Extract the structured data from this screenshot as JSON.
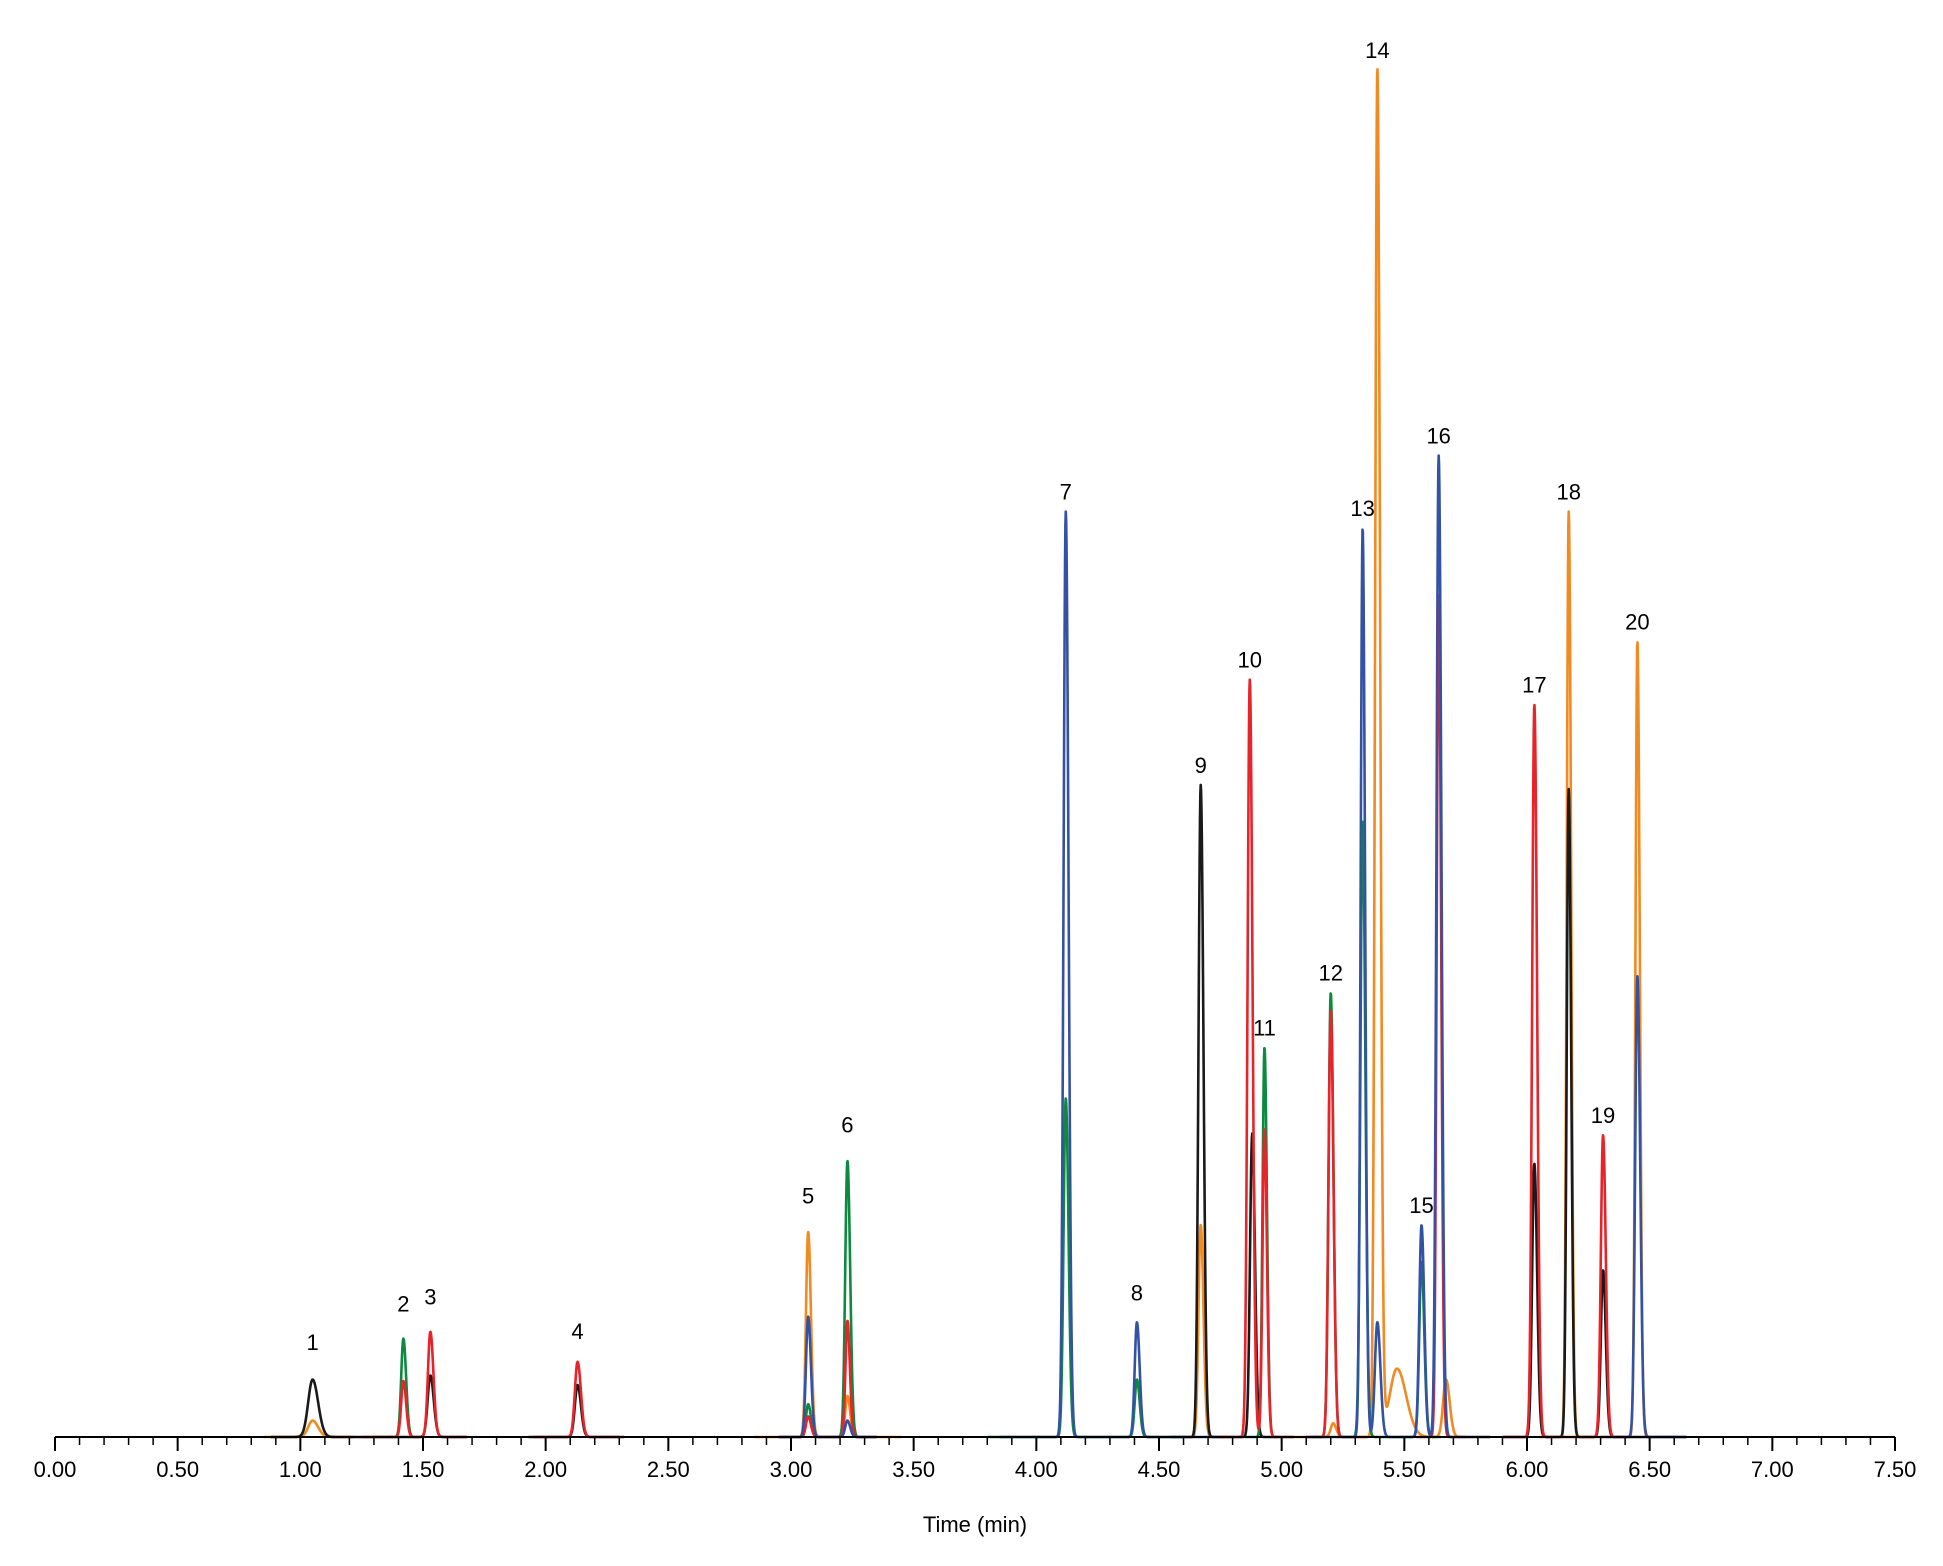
{
  "chart_data": {
    "type": "line",
    "title": "",
    "xlabel": "Time (min)",
    "ylabel": "",
    "xlim": [
      0,
      7.5
    ],
    "ylim": [
      0,
      1000
    ],
    "grid": false,
    "x_ticks": [
      "0.00",
      "0.50",
      "1.00",
      "1.50",
      "2.00",
      "2.50",
      "3.00",
      "3.50",
      "4.00",
      "4.50",
      "5.00",
      "5.50",
      "6.00",
      "6.50",
      "7.00",
      "7.50"
    ],
    "x_minor_step": 0.1,
    "colors": {
      "black": "#1a1a1a",
      "orange": "#f18a21",
      "green": "#0d8a3f",
      "red": "#e8232a",
      "blue": "#3452a4"
    },
    "peak_labels": [
      {
        "label": "1",
        "x": 1.05,
        "y": 55
      },
      {
        "label": "2",
        "x": 1.42,
        "y": 83
      },
      {
        "label": "3",
        "x": 1.53,
        "y": 88
      },
      {
        "label": "4",
        "x": 2.13,
        "y": 63
      },
      {
        "label": "5",
        "x": 3.07,
        "y": 162
      },
      {
        "label": "6",
        "x": 3.23,
        "y": 214
      },
      {
        "label": "7",
        "x": 4.12,
        "y": 677
      },
      {
        "label": "8",
        "x": 4.41,
        "y": 91
      },
      {
        "label": "9",
        "x": 4.67,
        "y": 477
      },
      {
        "label": "10",
        "x": 4.87,
        "y": 554
      },
      {
        "label": "11",
        "x": 4.93,
        "y": 285
      },
      {
        "label": "12",
        "x": 5.2,
        "y": 325
      },
      {
        "label": "13",
        "x": 5.33,
        "y": 665
      },
      {
        "label": "14",
        "x": 5.39,
        "y": 1000
      },
      {
        "label": "15",
        "x": 5.57,
        "y": 155
      },
      {
        "label": "16",
        "x": 5.64,
        "y": 718
      },
      {
        "label": "17",
        "x": 6.03,
        "y": 536
      },
      {
        "label": "18",
        "x": 6.17,
        "y": 677
      },
      {
        "label": "19",
        "x": 6.31,
        "y": 221
      },
      {
        "label": "20",
        "x": 6.45,
        "y": 582
      }
    ],
    "series": [
      {
        "color": "black",
        "segments": [
          [
            0.88,
            1.68,
            [
              [
                1.05,
                42,
                0.018
              ],
              [
                1.53,
                45,
                0.011
              ]
            ]
          ],
          [
            1.93,
            2.32,
            [
              [
                2.13,
                38,
                0.011
              ]
            ]
          ],
          [
            4.55,
            4.98,
            [
              [
                4.67,
                477,
                0.009
              ],
              [
                4.88,
                222,
                0.009
              ]
            ]
          ],
          [
            5.9,
            6.65,
            [
              [
                6.03,
                200,
                0.009
              ],
              [
                6.17,
                474,
                0.008
              ],
              [
                6.31,
                122,
                0.009
              ]
            ]
          ]
        ]
      },
      {
        "color": "orange",
        "segments": [
          [
            0.85,
            1.22,
            [
              [
                1.05,
                12,
                0.018
              ]
            ]
          ],
          [
            2.85,
            3.45,
            [
              [
                3.07,
                150,
                0.009
              ],
              [
                3.23,
                30,
                0.009
              ]
            ]
          ],
          [
            4.55,
            4.78,
            [
              [
                4.67,
                155,
                0.009
              ]
            ]
          ],
          [
            5.05,
            5.85,
            [
              [
                5.21,
                10,
                0.01
              ],
              [
                5.39,
                1000,
                0.009
              ],
              [
                5.47,
                50,
                0.03
              ],
              [
                5.67,
                42,
                0.012
              ]
            ]
          ],
          [
            6.05,
            6.5,
            [
              [
                6.17,
                677,
                0.008
              ],
              [
                6.45,
                582,
                0.008
              ]
            ]
          ]
        ]
      },
      {
        "color": "green",
        "segments": [
          [
            1.3,
            1.48,
            [
              [
                1.42,
                72,
                0.009
              ]
            ]
          ],
          [
            2.95,
            3.35,
            [
              [
                3.07,
                24,
                0.009
              ],
              [
                3.23,
                202,
                0.009
              ]
            ]
          ],
          [
            3.8,
            4.6,
            [
              [
                4.12,
                248,
                0.009
              ],
              [
                4.41,
                42,
                0.009
              ]
            ]
          ],
          [
            4.85,
            5.05,
            [
              [
                4.93,
                285,
                0.008
              ]
            ]
          ],
          [
            5.12,
            5.65,
            [
              [
                5.2,
                325,
                0.009
              ],
              [
                5.33,
                450,
                0.009
              ],
              [
                5.57,
                128,
                0.009
              ]
            ]
          ]
        ]
      },
      {
        "color": "red",
        "segments": [
          [
            1.25,
            1.68,
            [
              [
                1.42,
                41,
                0.009
              ],
              [
                1.53,
                77,
                0.01
              ]
            ]
          ],
          [
            1.95,
            2.3,
            [
              [
                2.13,
                55,
                0.011
              ]
            ]
          ],
          [
            2.95,
            3.35,
            [
              [
                3.07,
                15,
                0.009
              ],
              [
                3.23,
                85,
                0.008
              ]
            ]
          ],
          [
            4.75,
            5.05,
            [
              [
                4.87,
                554,
                0.009
              ],
              [
                4.93,
                225,
                0.008
              ]
            ]
          ],
          [
            5.1,
            5.35,
            [
              [
                5.2,
                312,
                0.009
              ]
            ]
          ],
          [
            5.55,
            5.75,
            [
              [
                5.64,
                615,
                0.008
              ]
            ]
          ],
          [
            5.9,
            6.4,
            [
              [
                6.03,
                536,
                0.009
              ],
              [
                6.31,
                221,
                0.009
              ]
            ]
          ]
        ]
      },
      {
        "color": "blue",
        "segments": [
          [
            2.95,
            3.35,
            [
              [
                3.07,
                88,
                0.009
              ],
              [
                3.23,
                12,
                0.009
              ]
            ]
          ],
          [
            3.85,
            4.75,
            [
              [
                4.12,
                677,
                0.009
              ],
              [
                4.41,
                84,
                0.009
              ]
            ]
          ],
          [
            5.1,
            5.85,
            [
              [
                5.33,
                665,
                0.008
              ],
              [
                5.39,
                84,
                0.01
              ],
              [
                5.57,
                155,
                0.009
              ],
              [
                5.64,
                718,
                0.009
              ]
            ]
          ],
          [
            6.3,
            6.65,
            [
              [
                6.45,
                337,
                0.009
              ]
            ]
          ]
        ]
      }
    ]
  }
}
